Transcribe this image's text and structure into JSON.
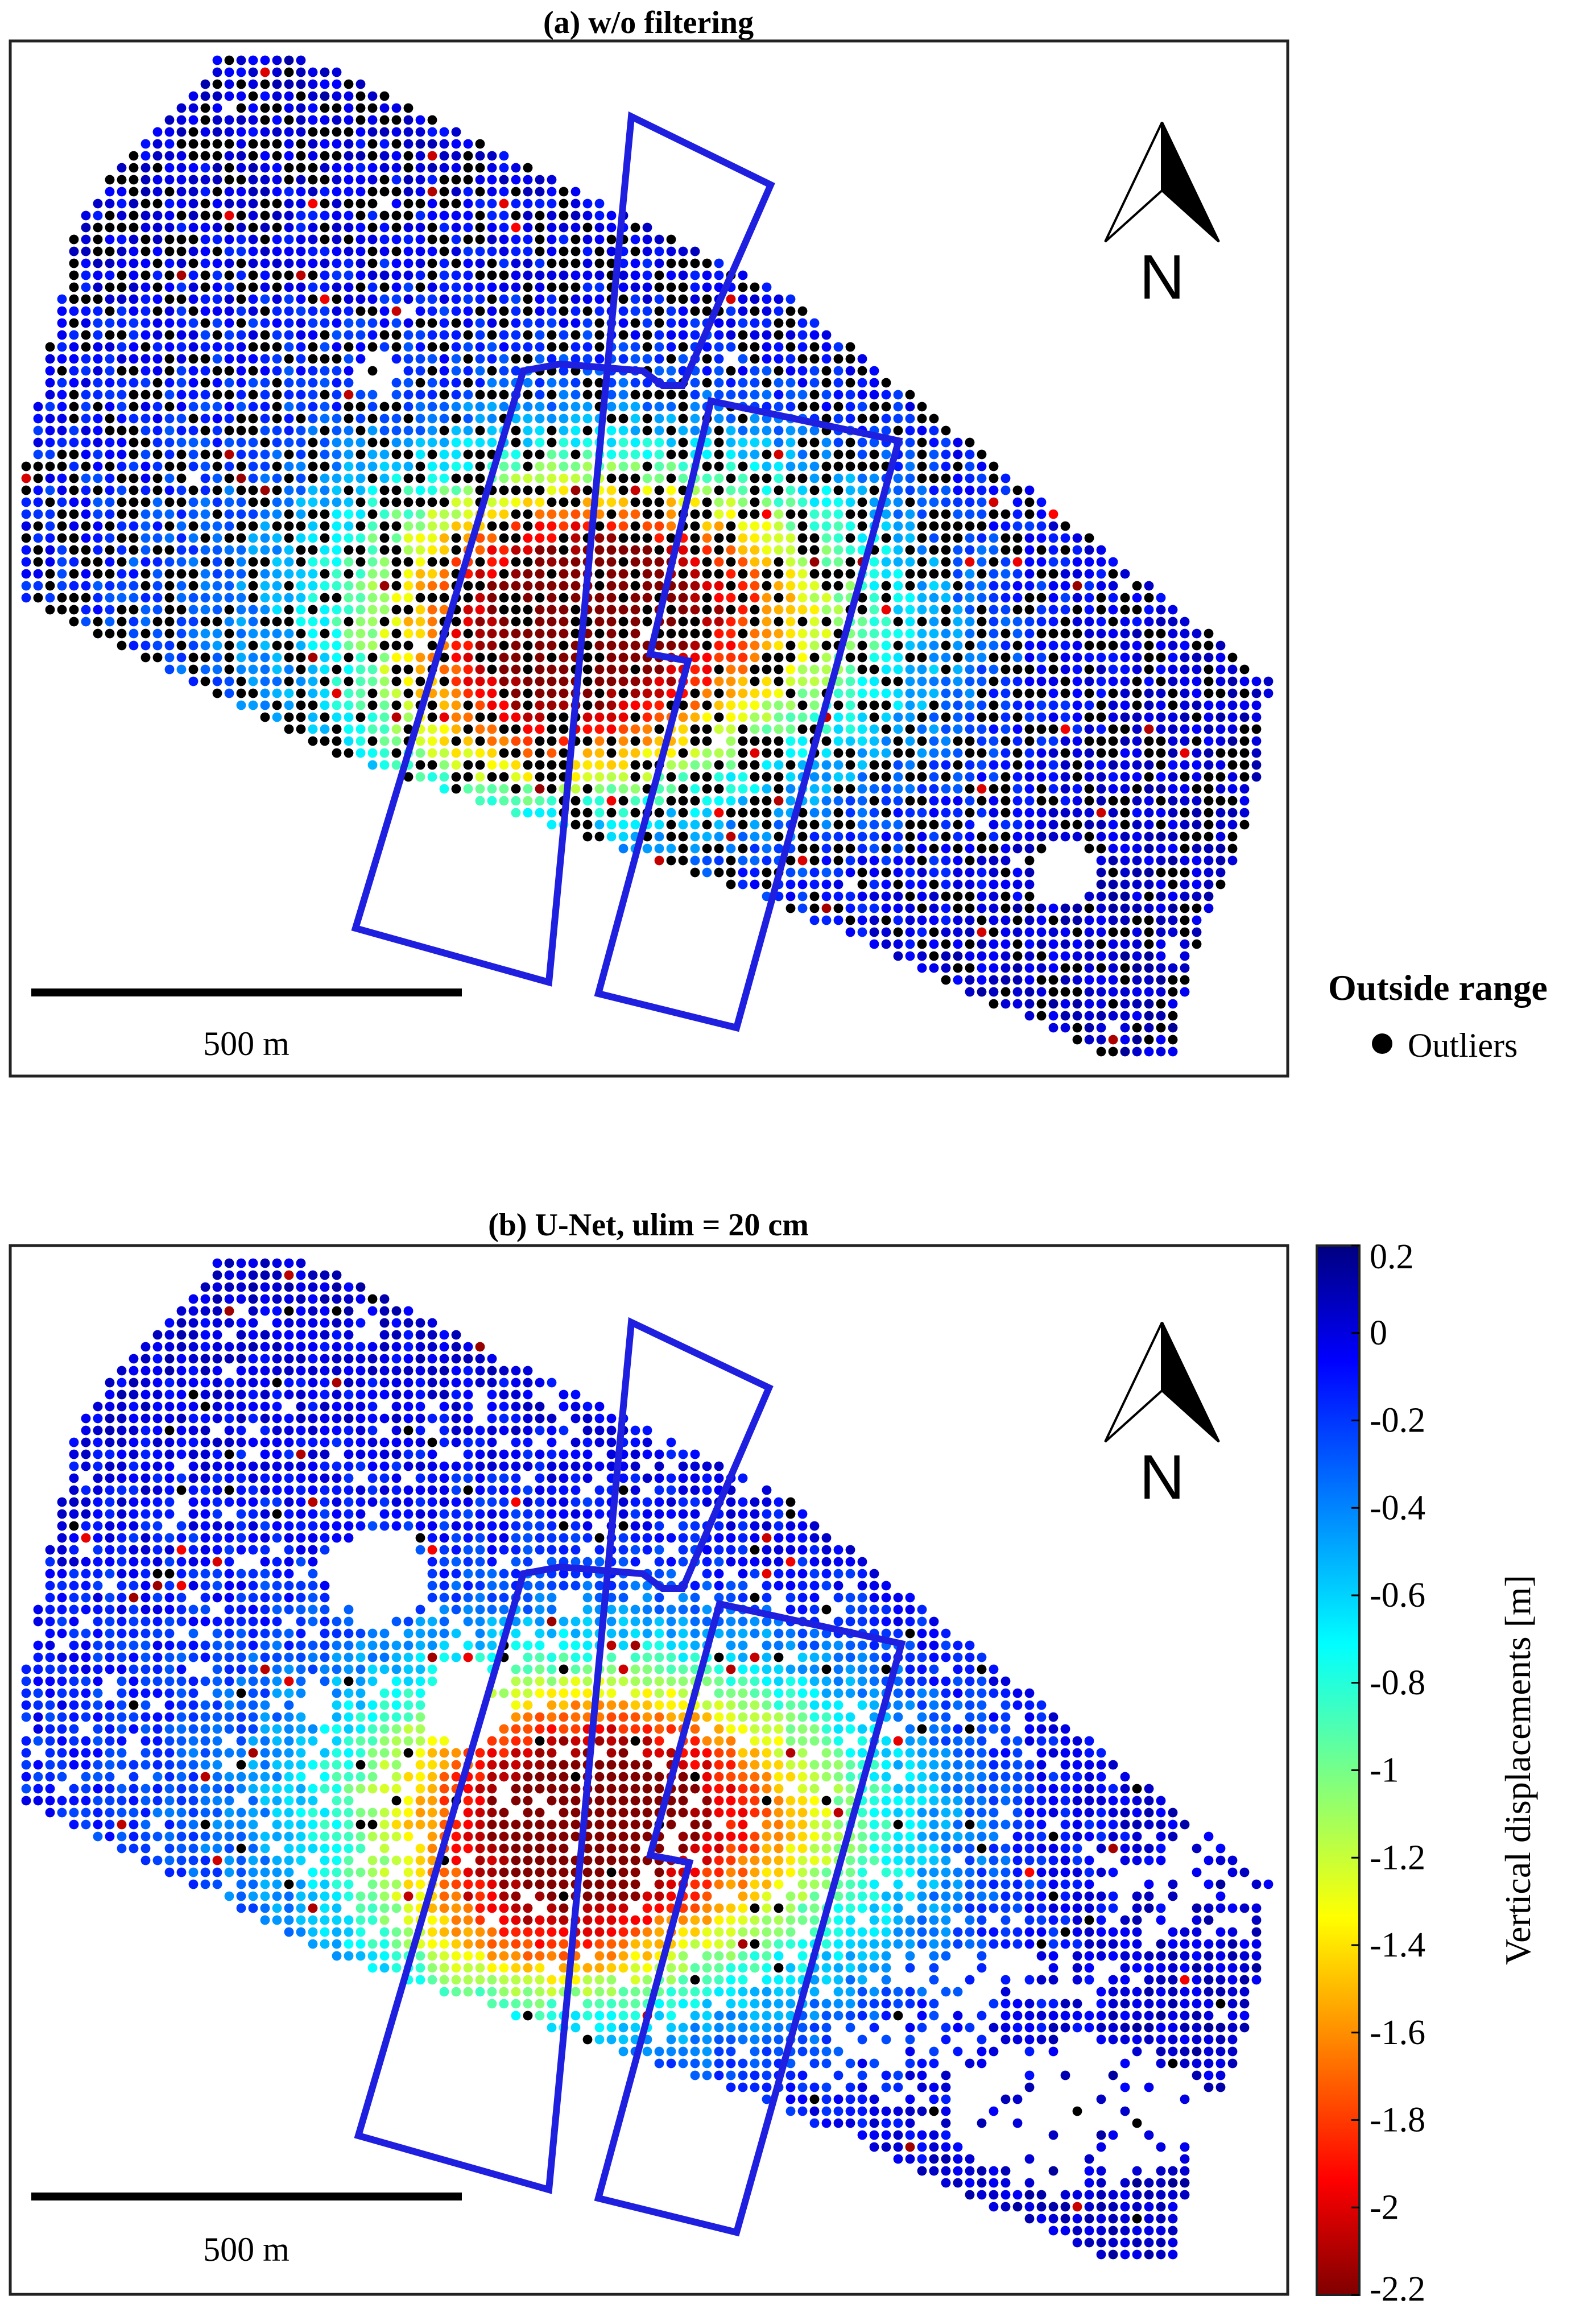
{
  "figure": {
    "panels": [
      {
        "id": "a",
        "title": "(a) w/o filtering",
        "scale_bar_label": "500 m",
        "north_label": "N",
        "outlier_fraction": 0.3
      },
      {
        "id": "b",
        "title": "(b) U-Net, ulim = 20 cm",
        "scale_bar_label": "500 m",
        "north_label": "N",
        "outlier_fraction": 0.02
      }
    ],
    "legend": {
      "title": "Outside range",
      "items": [
        {
          "label": "Outliers",
          "color": "#000000"
        }
      ]
    },
    "colorbar": {
      "label": "Vertical displacements [m]",
      "ticks": [
        "0.2",
        "0",
        "-0.2",
        "-0.4",
        "-0.6",
        "-0.8",
        "-1",
        "-1.2",
        "-1.4",
        "-1.6",
        "-1.8",
        "-2",
        "-2.2"
      ],
      "range": [
        -2.2,
        0.2
      ],
      "colormap": "jet (reversed: 0.2 dark blue, -2.2 dark red)"
    },
    "outline_color": "#1f1fe0"
  },
  "chart_data": [
    {
      "type": "scatter",
      "title": "(a) w/o filtering",
      "value": "vertical displacement (m)",
      "range": [
        -2.2,
        0.2
      ],
      "note": "subsidence bowl about -1.6 to -2.0 m near the mine panels, about 0 to -0.4 m at the edges; many black outliers",
      "legend": "Outside range: Outliers"
    },
    {
      "type": "scatter",
      "title": "(b) U-Net, ulim = 20 cm",
      "value": "vertical displacement (m)",
      "range": [
        -2.2,
        0.2
      ],
      "note": "same subsidence bowl; few outliers, gaps where points were filtered"
    }
  ]
}
